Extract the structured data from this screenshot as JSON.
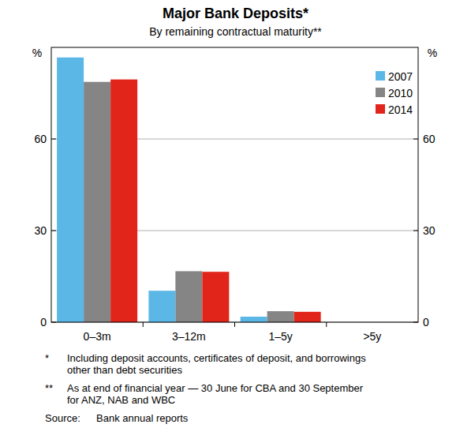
{
  "chart_data": {
    "type": "bar",
    "title": "Major Bank Deposits*",
    "subtitle": "By remaining contractual maturity**",
    "ylabel": "%",
    "categories": [
      "0–3m",
      "3–12m",
      "1–5y",
      ">5y"
    ],
    "series": [
      {
        "name": "2007",
        "color": "#5bb8e6",
        "values": [
          86.7,
          10.3,
          1.8,
          0
        ]
      },
      {
        "name": "2010",
        "color": "#858585",
        "values": [
          78.7,
          16.7,
          3.6,
          0
        ]
      },
      {
        "name": "2014",
        "color": "#e1251b",
        "values": [
          79.5,
          16.5,
          3.4,
          0
        ]
      }
    ],
    "ylim": [
      0,
      90
    ],
    "yticks": [
      0,
      30,
      60
    ],
    "grid": true,
    "legend": "top-right",
    "notes": [
      {
        "symbol": "*",
        "lines": [
          "Including deposit accounts, certificates of deposit, and borrowings",
          "other than debt securities"
        ]
      },
      {
        "symbol": "**",
        "lines": [
          "As at end of financial year — 30 June for CBA and 30 September",
          "for ANZ, NAB and WBC"
        ]
      }
    ],
    "source_label": "Source:",
    "source": "Bank annual reports"
  }
}
